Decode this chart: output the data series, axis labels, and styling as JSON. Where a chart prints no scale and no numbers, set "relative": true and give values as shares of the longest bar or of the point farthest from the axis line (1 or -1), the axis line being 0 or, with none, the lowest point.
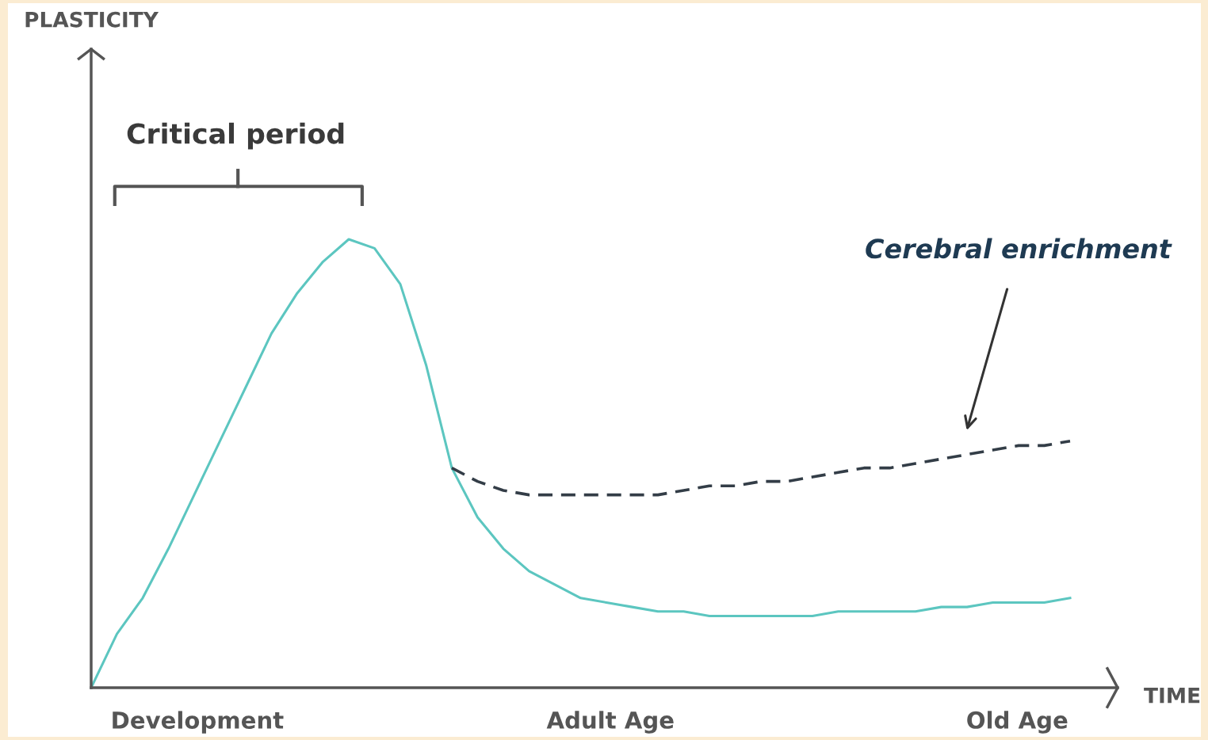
{
  "chart_data": {
    "type": "line",
    "relative": true,
    "xlabel": "TIME",
    "categories": [
      null,
      null,
      null,
      null,
      null,
      null,
      null,
      null,
      null,
      null,
      null,
      null,
      null,
      null,
      null,
      null,
      null,
      null,
      null,
      null,
      null,
      null,
      null,
      null,
      null,
      null,
      null,
      null,
      null,
      null,
      null,
      null,
      null,
      null,
      null,
      null,
      null,
      null,
      null
    ],
    "series": [
      {
        "color": "#5cc6c0",
        "line_style": "solid",
        "values": [
          0,
          0.12,
          0.2,
          0.31,
          0.43,
          0.55,
          0.67,
          0.79,
          0.88,
          0.95,
          1.0,
          0.98,
          0.9,
          0.72,
          0.49,
          0.38,
          0.31,
          0.26,
          0.23,
          0.2,
          0.19,
          0.18,
          0.17,
          0.17,
          0.16,
          0.16,
          0.16,
          0.16,
          0.16,
          0.17,
          0.17,
          0.17,
          0.17,
          0.18,
          0.18,
          0.19,
          0.19,
          0.19,
          0.2
        ]
      },
      {
        "color": "#333d47",
        "line_style": "dashed",
        "values": [
          null,
          null,
          null,
          null,
          null,
          null,
          null,
          null,
          null,
          null,
          null,
          null,
          null,
          null,
          0.49,
          0.46,
          0.44,
          0.43,
          0.43,
          0.43,
          0.43,
          0.43,
          0.43,
          0.44,
          0.45,
          0.45,
          0.46,
          0.46,
          0.47,
          0.48,
          0.49,
          0.49,
          0.5,
          0.51,
          0.52,
          0.53,
          0.54,
          0.54,
          0.55
        ]
      }
    ],
    "annotations": [
      "Critical period",
      "Cerebral enrichment",
      "Development",
      "Adult Age",
      "Old Age",
      "PLASTICITY"
    ],
    "legend": false
  }
}
